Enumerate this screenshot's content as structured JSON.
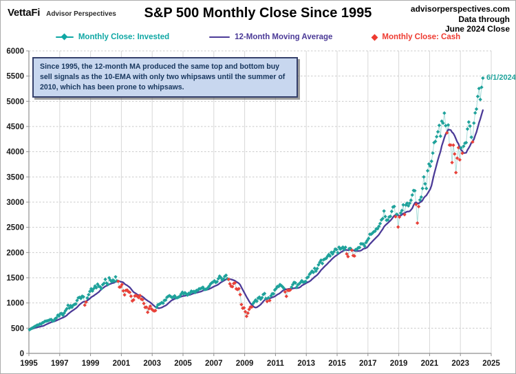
{
  "header": {
    "logo_primary": "VettaFi",
    "logo_secondary": "Advisor Perspectives",
    "title": "S&P 500 Monthly Close Since 1995",
    "source_line1": "advisorperspectives.com",
    "source_line2": "Data through",
    "source_line3": "June 2024 Close"
  },
  "legend": {
    "items": [
      {
        "label": "Monthly Close: Invested",
        "color": "#0fa7a4",
        "type": "line-diamond"
      },
      {
        "label": "12-Month Moving Average",
        "color": "#4b3a97",
        "type": "line"
      },
      {
        "label": "Monthly Close: Cash",
        "color": "#ee3a30",
        "type": "diamond"
      }
    ]
  },
  "annotation": {
    "text": "Since 1995, the 12-month MA produced the same top and bottom buy sell signals as the 10-EMA with only two whipsaws until the summer of 2010, which has been prone to whipsaws."
  },
  "chart_data": {
    "type": "scatter",
    "title": "S&P 500 Monthly Close Since 1995",
    "xlabel": "",
    "ylabel": "",
    "xlim": [
      1995,
      2025
    ],
    "ylim": [
      0,
      6000
    ],
    "x_ticks": [
      1995,
      1997,
      1999,
      2001,
      2003,
      2005,
      2007,
      2009,
      2011,
      2013,
      2015,
      2017,
      2019,
      2021,
      2023,
      2025
    ],
    "y_ticks": [
      0,
      500,
      1000,
      1500,
      2000,
      2500,
      3000,
      3500,
      4000,
      4500,
      5000,
      5500,
      6000
    ],
    "grid": true,
    "legend_position": "top",
    "start_year": 1995,
    "start_month": 1,
    "last_point_label": "6/1/2024",
    "series": [
      {
        "name": "Monthly Close: Invested",
        "color": "#1fa29b"
      },
      {
        "name": "12-Month Moving Average",
        "color": "#4b3a97"
      },
      {
        "name": "Monthly Close: Cash",
        "color": "#e8423a"
      }
    ],
    "connector_color": "#a9dcd9",
    "monthly_close": [
      470,
      487,
      501,
      515,
      533,
      545,
      562,
      562,
      584,
      582,
      605,
      616,
      636,
      640,
      646,
      654,
      669,
      671,
      640,
      652,
      687,
      705,
      757,
      741,
      786,
      791,
      757,
      801,
      848,
      885,
      954,
      899,
      947,
      915,
      955,
      970,
      980,
      1049,
      1102,
      1112,
      1091,
      1134,
      1121,
      957,
      1017,
      1099,
      1164,
      1229,
      1280,
      1238,
      1286,
      1335,
      1302,
      1373,
      1329,
      1320,
      1283,
      1363,
      1389,
      1469,
      1394,
      1366,
      1499,
      1452,
      1421,
      1455,
      1431,
      1518,
      1437,
      1429,
      1315,
      1320,
      1366,
      1240,
      1160,
      1249,
      1256,
      1224,
      1211,
      1134,
      1041,
      1060,
      1139,
      1148,
      1130,
      1107,
      1147,
      1077,
      1067,
      990,
      912,
      916,
      815,
      886,
      936,
      880,
      856,
      841,
      849,
      917,
      964,
      975,
      990,
      1008,
      996,
      1051,
      1058,
      1112,
      1131,
      1145,
      1126,
      1107,
      1121,
      1141,
      1102,
      1104,
      1115,
      1130,
      1174,
      1212,
      1181,
      1204,
      1181,
      1157,
      1192,
      1191,
      1234,
      1220,
      1229,
      1207,
      1249,
      1248,
      1280,
      1281,
      1295,
      1311,
      1270,
      1270,
      1277,
      1304,
      1336,
      1378,
      1401,
      1418,
      1438,
      1407,
      1421,
      1482,
      1531,
      1503,
      1455,
      1474,
      1527,
      1549,
      1481,
      1468,
      1379,
      1331,
      1323,
      1386,
      1400,
      1280,
      1267,
      1283,
      1166,
      969,
      896,
      903,
      826,
      735,
      798,
      873,
      919,
      919,
      987,
      1021,
      1057,
      1036,
      1096,
      1115,
      1074,
      1104,
      1169,
      1187,
      1089,
      1031,
      1102,
      1049,
      1141,
      1183,
      1181,
      1258,
      1286,
      1327,
      1326,
      1364,
      1345,
      1321,
      1292,
      1219,
      1131,
      1253,
      1247,
      1258,
      1312,
      1366,
      1408,
      1398,
      1310,
      1362,
      1379,
      1407,
      1441,
      1412,
      1416,
      1426,
      1498,
      1515,
      1569,
      1598,
      1631,
      1606,
      1686,
      1633,
      1682,
      1757,
      1806,
      1848,
      1783,
      1859,
      1872,
      1884,
      1924,
      1960,
      1931,
      2003,
      1972,
      2018,
      2068,
      2059,
      1995,
      2105,
      2068,
      2086,
      2107,
      2063,
      2104,
      1972,
      1920,
      2079,
      2080,
      2044,
      1940,
      1932,
      2060,
      2065,
      2097,
      2099,
      2174,
      2171,
      2168,
      2126,
      2199,
      2239,
      2279,
      2364,
      2363,
      2384,
      2412,
      2423,
      2470,
      2472,
      2519,
      2575,
      2648,
      2674,
      2824,
      2714,
      2641,
      2648,
      2705,
      2718,
      2816,
      2902,
      2914,
      2712,
      2760,
      2507,
      2704,
      2784,
      2834,
      2946,
      2752,
      2942,
      2980,
      2926,
      2977,
      3038,
      3141,
      3231,
      3226,
      2954,
      2585,
      2912,
      3044,
      3100,
      3271,
      3500,
      3363,
      3270,
      3622,
      3756,
      3714,
      3811,
      3973,
      4181,
      4204,
      4298,
      4395,
      4523,
      4308,
      4605,
      4567,
      4766,
      4516,
      4374,
      4530,
      4132,
      4132,
      3785,
      4130,
      3955,
      3586,
      3872,
      4080,
      3840,
      4077,
      3970,
      4109,
      4169,
      4180,
      4450,
      4589,
      4508,
      4288,
      4194,
      4568,
      4770,
      4846,
      5096,
      5254,
      5036,
      5278,
      5460
    ],
    "cash_month_indices": [
      43,
      44,
      69,
      70,
      71,
      72,
      73,
      74,
      75,
      76,
      77,
      78,
      79,
      80,
      81,
      82,
      83,
      84,
      85,
      86,
      87,
      88,
      89,
      90,
      91,
      92,
      93,
      94,
      95,
      96,
      97,
      98,
      155,
      156,
      157,
      158,
      159,
      160,
      161,
      162,
      163,
      164,
      165,
      166,
      167,
      168,
      169,
      170,
      171,
      172,
      173,
      185,
      187,
      199,
      200,
      201,
      202,
      203,
      247,
      248,
      251,
      252,
      253,
      285,
      287,
      288,
      292,
      301,
      302,
      303,
      325,
      327,
      328,
      329,
      330,
      331,
      332,
      333,
      334,
      335,
      337,
      345
    ]
  }
}
